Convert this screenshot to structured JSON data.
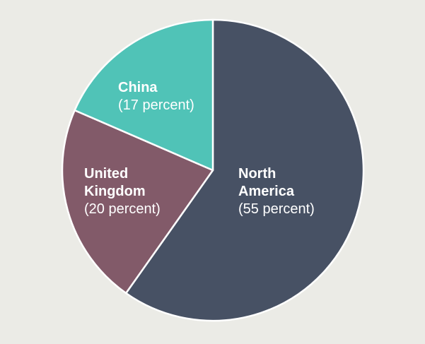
{
  "background": "#ebebe6",
  "chart_data": {
    "type": "pie",
    "title": "",
    "start": "top",
    "direction": "clockwise",
    "slices": [
      {
        "id": "north-america",
        "name_lines": [
          "North",
          "America"
        ],
        "value_text": "(55 percent)",
        "value": 55,
        "color": "#475164"
      },
      {
        "id": "united-kingdom",
        "name_lines": [
          "United",
          "Kingdom"
        ],
        "value_text": "(20 percent)",
        "value": 20,
        "color": "#825a69"
      },
      {
        "id": "china",
        "name_lines": [
          "China"
        ],
        "value_text": "(17 percent)",
        "value": 17,
        "color": "#50c3b7"
      }
    ]
  }
}
